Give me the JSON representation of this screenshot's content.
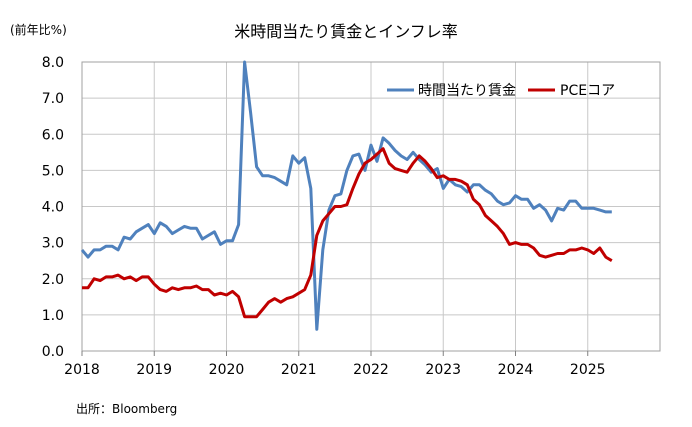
{
  "chart_data": {
    "type": "line",
    "title": "米時間当たり賃金とインフレ率",
    "ylabel": "(前年比%)",
    "source": "出所：Bloomberg",
    "ylim": [
      0,
      8
    ],
    "xlim": [
      2018,
      2026
    ],
    "yticks": [
      "8.0",
      "7.0",
      "6.0",
      "5.0",
      "4.0",
      "3.0",
      "2.0",
      "1.0",
      "0.0"
    ],
    "ytick_values": [
      8,
      7,
      6,
      5,
      4,
      3,
      2,
      1,
      0
    ],
    "xticks": [
      "2018",
      "2019",
      "2020",
      "2021",
      "2022",
      "2023",
      "2024",
      "2025"
    ],
    "xtick_values": [
      2018,
      2019,
      2020,
      2021,
      2022,
      2023,
      2024,
      2025
    ],
    "grid": true,
    "legend_position": "top-right",
    "series": [
      {
        "name": "時間当たり賃金",
        "color": "#4F81BD",
        "x": [
          2018.0,
          2018.083,
          2018.167,
          2018.25,
          2018.333,
          2018.417,
          2018.5,
          2018.583,
          2018.667,
          2018.75,
          2018.833,
          2018.917,
          2019.0,
          2019.083,
          2019.167,
          2019.25,
          2019.333,
          2019.417,
          2019.5,
          2019.583,
          2019.667,
          2019.75,
          2019.833,
          2019.917,
          2020.0,
          2020.083,
          2020.167,
          2020.25,
          2020.333,
          2020.417,
          2020.5,
          2020.583,
          2020.667,
          2020.75,
          2020.833,
          2020.917,
          2021.0,
          2021.083,
          2021.167,
          2021.25,
          2021.333,
          2021.417,
          2021.5,
          2021.583,
          2021.667,
          2021.75,
          2021.833,
          2021.917,
          2022.0,
          2022.083,
          2022.167,
          2022.25,
          2022.333,
          2022.417,
          2022.5,
          2022.583,
          2022.667,
          2022.75,
          2022.833,
          2022.917,
          2023.0,
          2023.083,
          2023.167,
          2023.25,
          2023.333,
          2023.417,
          2023.5,
          2023.583,
          2023.667,
          2023.75,
          2023.833,
          2023.917,
          2024.0,
          2024.083,
          2024.167,
          2024.25,
          2024.333,
          2024.417,
          2024.5,
          2024.583,
          2024.667,
          2024.75,
          2024.833,
          2024.917,
          2025.0,
          2025.083,
          2025.167,
          2025.25,
          2025.333
        ],
        "values": [
          2.8,
          2.6,
          2.8,
          2.8,
          2.9,
          2.9,
          2.8,
          3.15,
          3.1,
          3.3,
          3.4,
          3.5,
          3.25,
          3.55,
          3.45,
          3.25,
          3.35,
          3.45,
          3.4,
          3.4,
          3.1,
          3.2,
          3.3,
          2.95,
          3.05,
          3.05,
          3.5,
          8.0,
          6.6,
          5.1,
          4.85,
          4.85,
          4.8,
          4.7,
          4.6,
          5.4,
          5.2,
          5.35,
          4.5,
          0.6,
          2.8,
          3.9,
          4.3,
          4.35,
          5.0,
          5.4,
          5.45,
          5.0,
          5.7,
          5.25,
          5.9,
          5.75,
          5.55,
          5.4,
          5.3,
          5.5,
          5.3,
          5.15,
          4.95,
          5.05,
          4.5,
          4.75,
          4.6,
          4.55,
          4.4,
          4.6,
          4.6,
          4.45,
          4.35,
          4.15,
          4.05,
          4.1,
          4.3,
          4.2,
          4.2,
          3.95,
          4.05,
          3.9,
          3.6,
          3.95,
          3.9,
          4.15,
          4.15,
          3.95,
          3.95,
          3.95,
          3.9,
          3.85,
          3.85
        ]
      },
      {
        "name": "PCEコア",
        "color": "#C00000",
        "x": [
          2018.0,
          2018.083,
          2018.167,
          2018.25,
          2018.333,
          2018.417,
          2018.5,
          2018.583,
          2018.667,
          2018.75,
          2018.833,
          2018.917,
          2019.0,
          2019.083,
          2019.167,
          2019.25,
          2019.333,
          2019.417,
          2019.5,
          2019.583,
          2019.667,
          2019.75,
          2019.833,
          2019.917,
          2020.0,
          2020.083,
          2020.167,
          2020.25,
          2020.333,
          2020.417,
          2020.5,
          2020.583,
          2020.667,
          2020.75,
          2020.833,
          2020.917,
          2021.0,
          2021.083,
          2021.167,
          2021.25,
          2021.333,
          2021.417,
          2021.5,
          2021.583,
          2021.667,
          2021.75,
          2021.833,
          2021.917,
          2022.0,
          2022.083,
          2022.167,
          2022.25,
          2022.333,
          2022.417,
          2022.5,
          2022.583,
          2022.667,
          2022.75,
          2022.833,
          2022.917,
          2023.0,
          2023.083,
          2023.167,
          2023.25,
          2023.333,
          2023.417,
          2023.5,
          2023.583,
          2023.667,
          2023.75,
          2023.833,
          2023.917,
          2024.0,
          2024.083,
          2024.167,
          2024.25,
          2024.333,
          2024.417,
          2024.5,
          2024.583,
          2024.667,
          2024.75,
          2024.833,
          2024.917,
          2025.0,
          2025.083,
          2025.167,
          2025.25,
          2025.333
        ],
        "values": [
          1.75,
          1.75,
          2.0,
          1.95,
          2.05,
          2.05,
          2.1,
          2.0,
          2.05,
          1.95,
          2.05,
          2.05,
          1.85,
          1.7,
          1.65,
          1.75,
          1.7,
          1.75,
          1.75,
          1.8,
          1.7,
          1.7,
          1.55,
          1.6,
          1.55,
          1.65,
          1.5,
          0.95,
          0.95,
          0.95,
          1.15,
          1.35,
          1.45,
          1.35,
          1.45,
          1.5,
          1.6,
          1.7,
          2.1,
          3.2,
          3.6,
          3.8,
          4.0,
          4.0,
          4.05,
          4.5,
          4.9,
          5.2,
          5.3,
          5.45,
          5.6,
          5.2,
          5.05,
          5.0,
          4.95,
          5.2,
          5.4,
          5.25,
          5.05,
          4.8,
          4.85,
          4.75,
          4.75,
          4.7,
          4.6,
          4.2,
          4.05,
          3.75,
          3.6,
          3.45,
          3.25,
          2.95,
          3.0,
          2.95,
          2.95,
          2.85,
          2.65,
          2.6,
          2.65,
          2.7,
          2.7,
          2.8,
          2.8,
          2.85,
          2.8,
          2.7,
          2.85,
          2.6,
          2.5
        ]
      }
    ]
  }
}
